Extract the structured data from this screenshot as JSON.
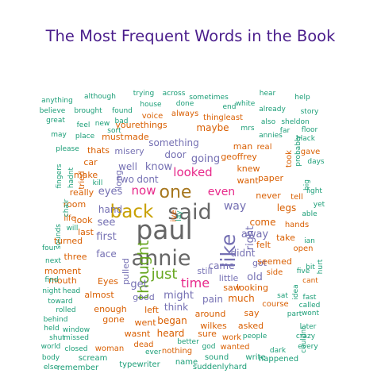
{
  "chart_data": {
    "type": "wordcloud",
    "title": "The Most Frequent Words in the Book",
    "colors": {
      "title": "#4b1e8c",
      "teal": "#1b9e77",
      "orange": "#d95f02",
      "purple": "#7570b3",
      "magenta": "#e7298a",
      "green": "#66a61e",
      "mustard": "#c8a000",
      "brown": "#a6761d",
      "gray": "#666666"
    },
    "words": [
      {
        "text": "paul",
        "color": "gray"
      },
      {
        "text": "annie",
        "color": "gray"
      },
      {
        "text": "said",
        "color": "gray"
      },
      {
        "text": "like",
        "color": "purple"
      },
      {
        "text": "back",
        "color": "mustard"
      },
      {
        "text": "one",
        "color": "brown"
      },
      {
        "text": "thought",
        "color": "green"
      },
      {
        "text": "just",
        "color": "green"
      },
      {
        "text": "time",
        "color": "magenta"
      },
      {
        "text": "now",
        "color": "magenta"
      },
      {
        "text": "even",
        "color": "magenta"
      },
      {
        "text": "looked",
        "color": "magenta"
      },
      {
        "text": "way",
        "color": "purple"
      },
      {
        "text": "going",
        "color": "purple"
      },
      {
        "text": "know",
        "color": "purple"
      },
      {
        "text": "right",
        "color": "purple"
      },
      {
        "text": "away",
        "color": "purple"
      },
      {
        "text": "didnt",
        "color": "purple"
      },
      {
        "text": "came",
        "color": "purple"
      },
      {
        "text": "get",
        "color": "purple"
      },
      {
        "text": "might",
        "color": "purple"
      },
      {
        "text": "first",
        "color": "purple"
      },
      {
        "text": "see",
        "color": "purple"
      },
      {
        "text": "hand",
        "color": "purple"
      },
      {
        "text": "eyes",
        "color": "purple"
      },
      {
        "text": "face",
        "color": "purple"
      },
      {
        "text": "old",
        "color": "purple"
      },
      {
        "text": "something",
        "color": "purple"
      },
      {
        "text": "dont",
        "color": "purple"
      },
      {
        "text": "two",
        "color": "purple"
      },
      {
        "text": "well",
        "color": "purple"
      },
      {
        "text": "door",
        "color": "purple"
      },
      {
        "text": "misery",
        "color": "purple"
      },
      {
        "text": "long",
        "color": "purple"
      },
      {
        "text": "pulled",
        "color": "purple"
      },
      {
        "text": "still",
        "color": "purple"
      },
      {
        "text": "little",
        "color": "purple"
      },
      {
        "text": "pain",
        "color": "purple"
      },
      {
        "text": "think",
        "color": "purple"
      },
      {
        "text": "good",
        "color": "purple"
      },
      {
        "text": "got",
        "color": "purple"
      },
      {
        "text": "come",
        "color": "orange"
      },
      {
        "text": "legs",
        "color": "orange"
      },
      {
        "text": "car",
        "color": "orange"
      },
      {
        "text": "maybe",
        "color": "orange"
      },
      {
        "text": "geoffrey",
        "color": "orange"
      },
      {
        "text": "knew",
        "color": "orange"
      },
      {
        "text": "want",
        "color": "orange"
      },
      {
        "text": "man",
        "color": "orange"
      },
      {
        "text": "felt",
        "color": "orange"
      },
      {
        "text": "take",
        "color": "orange"
      },
      {
        "text": "seemed",
        "color": "orange"
      },
      {
        "text": "saw",
        "color": "orange"
      },
      {
        "text": "looking",
        "color": "orange"
      },
      {
        "text": "much",
        "color": "orange"
      },
      {
        "text": "around",
        "color": "orange"
      },
      {
        "text": "say",
        "color": "orange"
      },
      {
        "text": "wilkes",
        "color": "orange"
      },
      {
        "text": "began",
        "color": "orange"
      },
      {
        "text": "went",
        "color": "orange"
      },
      {
        "text": "left",
        "color": "orange"
      },
      {
        "text": "enough",
        "color": "orange"
      },
      {
        "text": "almost",
        "color": "orange"
      },
      {
        "text": "mouth",
        "color": "orange"
      },
      {
        "text": "moment",
        "color": "orange"
      },
      {
        "text": "three",
        "color": "orange"
      },
      {
        "text": "turned",
        "color": "orange"
      },
      {
        "text": "room",
        "color": "orange"
      },
      {
        "text": "really",
        "color": "orange"
      },
      {
        "text": "make",
        "color": "orange"
      },
      {
        "text": "thats",
        "color": "orange"
      },
      {
        "text": "must",
        "color": "orange"
      },
      {
        "text": "made",
        "color": "orange"
      },
      {
        "text": "yourethings",
        "color": "orange"
      },
      {
        "text": "paper",
        "color": "orange"
      },
      {
        "text": "never",
        "color": "orange"
      },
      {
        "text": "wasnt",
        "color": "orange"
      },
      {
        "text": "heard",
        "color": "orange"
      },
      {
        "text": "sure",
        "color": "orange"
      },
      {
        "text": "asked",
        "color": "orange"
      },
      {
        "text": "gone",
        "color": "orange"
      },
      {
        "text": "Eyes",
        "color": "orange"
      },
      {
        "text": "last",
        "color": "orange"
      },
      {
        "text": "look",
        "color": "orange"
      },
      {
        "text": "life",
        "color": "orange"
      },
      {
        "text": "took",
        "color": "orange"
      },
      {
        "text": "tried",
        "color": "orange"
      },
      {
        "text": "cant",
        "color": "orange"
      },
      {
        "text": "nothing",
        "color": "orange"
      },
      {
        "text": "dead",
        "color": "orange"
      },
      {
        "text": "woman",
        "color": "orange"
      },
      {
        "text": "always",
        "color": "orange"
      },
      {
        "text": "voice",
        "color": "orange"
      },
      {
        "text": "thingleast",
        "color": "orange"
      },
      {
        "text": "real",
        "color": "orange"
      },
      {
        "text": "tell",
        "color": "orange"
      },
      {
        "text": "ive",
        "color": "orange"
      },
      {
        "text": "side",
        "color": "orange"
      },
      {
        "text": "course",
        "color": "orange"
      },
      {
        "text": "hands",
        "color": "orange"
      },
      {
        "text": "open",
        "color": "orange"
      },
      {
        "text": "gave",
        "color": "orange"
      },
      {
        "text": "wanted",
        "color": "orange"
      },
      {
        "text": "work",
        "color": "orange"
      },
      {
        "text": "fingers",
        "color": "teal"
      },
      {
        "text": "hadnt",
        "color": "teal"
      },
      {
        "text": "chair",
        "color": "teal"
      },
      {
        "text": "sounds",
        "color": "teal"
      },
      {
        "text": "four",
        "color": "teal"
      },
      {
        "text": "next",
        "color": "teal"
      },
      {
        "text": "find",
        "color": "teal"
      },
      {
        "text": "night",
        "color": "teal"
      },
      {
        "text": "head",
        "color": "teal"
      },
      {
        "text": "toward",
        "color": "teal"
      },
      {
        "text": "rolled",
        "color": "teal"
      },
      {
        "text": "behind",
        "color": "teal"
      },
      {
        "text": "held",
        "color": "teal"
      },
      {
        "text": "window",
        "color": "teal"
      },
      {
        "text": "shut",
        "color": "teal"
      },
      {
        "text": "missed",
        "color": "teal"
      },
      {
        "text": "world",
        "color": "teal"
      },
      {
        "text": "closed",
        "color": "teal"
      },
      {
        "text": "body",
        "color": "teal"
      },
      {
        "text": "scream",
        "color": "teal"
      },
      {
        "text": "else",
        "color": "teal"
      },
      {
        "text": "remember",
        "color": "teal"
      },
      {
        "text": "typewriter",
        "color": "teal"
      },
      {
        "text": "name",
        "color": "teal"
      },
      {
        "text": "sound",
        "color": "teal"
      },
      {
        "text": "write",
        "color": "teal"
      },
      {
        "text": "suddenlyhard",
        "color": "teal"
      },
      {
        "text": "happened",
        "color": "teal"
      },
      {
        "text": "every",
        "color": "teal"
      },
      {
        "text": "crazy",
        "color": "teal"
      },
      {
        "text": "later",
        "color": "teal"
      },
      {
        "text": "dark",
        "color": "teal"
      },
      {
        "text": "wont",
        "color": "teal"
      },
      {
        "text": "called",
        "color": "teal"
      },
      {
        "text": "couldnt",
        "color": "teal"
      },
      {
        "text": "fast",
        "color": "teal"
      },
      {
        "text": "part",
        "color": "teal"
      },
      {
        "text": "sat",
        "color": "teal"
      },
      {
        "text": "idea",
        "color": "teal"
      },
      {
        "text": "five",
        "color": "teal"
      },
      {
        "text": "hurt",
        "color": "teal"
      },
      {
        "text": "ian",
        "color": "teal"
      },
      {
        "text": "able",
        "color": "teal"
      },
      {
        "text": "yet",
        "color": "teal"
      },
      {
        "text": "light",
        "color": "teal"
      },
      {
        "text": "big",
        "color": "teal"
      },
      {
        "text": "days",
        "color": "teal"
      },
      {
        "text": "black",
        "color": "teal"
      },
      {
        "text": "floor",
        "color": "teal"
      },
      {
        "text": "sheldon",
        "color": "teal"
      },
      {
        "text": "story",
        "color": "teal"
      },
      {
        "text": "help",
        "color": "teal"
      },
      {
        "text": "hear",
        "color": "teal"
      },
      {
        "text": "already",
        "color": "teal"
      },
      {
        "text": "white",
        "color": "teal"
      },
      {
        "text": "end",
        "color": "teal"
      },
      {
        "text": "sometimes",
        "color": "teal"
      },
      {
        "text": "across",
        "color": "teal"
      },
      {
        "text": "trying",
        "color": "teal"
      },
      {
        "text": "house",
        "color": "teal"
      },
      {
        "text": "done",
        "color": "teal"
      },
      {
        "text": "although",
        "color": "teal"
      },
      {
        "text": "anything",
        "color": "teal"
      },
      {
        "text": "believe",
        "color": "teal"
      },
      {
        "text": "brought",
        "color": "teal"
      },
      {
        "text": "found",
        "color": "teal"
      },
      {
        "text": "great",
        "color": "teal"
      },
      {
        "text": "feel",
        "color": "teal"
      },
      {
        "text": "new",
        "color": "teal"
      },
      {
        "text": "bad",
        "color": "teal"
      },
      {
        "text": "may",
        "color": "teal"
      },
      {
        "text": "place",
        "color": "teal"
      },
      {
        "text": "please",
        "color": "teal"
      },
      {
        "text": "kill",
        "color": "teal"
      },
      {
        "text": "will",
        "color": "teal"
      },
      {
        "text": "sort",
        "color": "teal"
      },
      {
        "text": "mrs",
        "color": "teal"
      },
      {
        "text": "annies",
        "color": "teal"
      },
      {
        "text": "also",
        "color": "teal"
      },
      {
        "text": "far",
        "color": "teal"
      },
      {
        "text": "probably",
        "color": "teal"
      },
      {
        "text": "bit",
        "color": "teal"
      },
      {
        "text": "people",
        "color": "teal"
      },
      {
        "text": "better",
        "color": "teal"
      },
      {
        "text": "ever",
        "color": "teal"
      },
      {
        "text": "god",
        "color": "teal"
      },
      {
        "text": "lay",
        "color": "teal"
      },
      {
        "text": "car2",
        "color": "teal"
      }
    ]
  }
}
